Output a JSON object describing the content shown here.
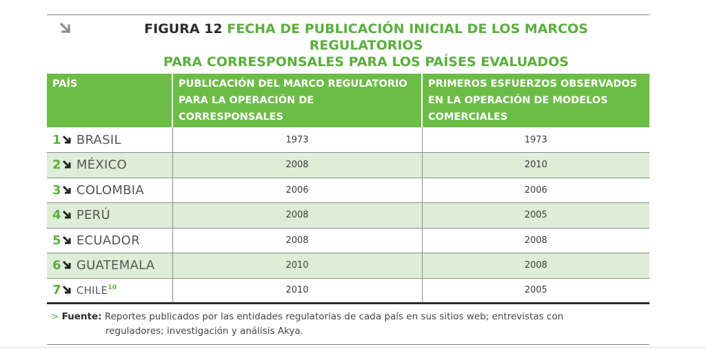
{
  "figure": {
    "label": "FIGURA 12",
    "title_line1": "FECHA DE PUBLICACIÓN INICIAL DE LOS MARCOS REGULATORIOS",
    "title_line2": "PARA CORRESPONSALES PARA LOS PAÍSES EVALUADOS"
  },
  "table": {
    "headers": [
      "PAÍS",
      "PUBLICACIÓN DEL MARCO REGULATORIO PARA LA OPERACIÓN DE CORRESPONSALES",
      "PRIMEROS ESFUERZOS OBSERVADOS EN LA OPERACIÓN DE MODELOS COMERCIALES"
    ],
    "rows": [
      {
        "num": "1",
        "country": "BRASIL",
        "publication": "1973",
        "first_efforts": "1973"
      },
      {
        "num": "2",
        "country": "MÉXICO",
        "publication": "2008",
        "first_efforts": "2010"
      },
      {
        "num": "3",
        "country": "COLOMBIA",
        "publication": "2006",
        "first_efforts": "2006"
      },
      {
        "num": "4",
        "country": "PERÚ",
        "publication": "2008",
        "first_efforts": "2005"
      },
      {
        "num": "5",
        "country": "ECUADOR",
        "publication": "2008",
        "first_efforts": "2008"
      },
      {
        "num": "6",
        "country": "GUATEMALA",
        "publication": "2010",
        "first_efforts": "2008"
      },
      {
        "num": "7",
        "country": "CHILE",
        "footnote": "10",
        "publication": "2010",
        "first_efforts": "2005"
      }
    ]
  },
  "source": {
    "prefix": ">",
    "label": "Fuente:",
    "text_line1": "Reportes publicados por las entidades regulatorias de cada país en sus sitios web; entrevistas con",
    "text_line2": "reguladores; investigación y análisis Akya."
  },
  "colors": {
    "accent_green": "#6cbd45",
    "title_green": "#5aae3e",
    "row_shade": "#deedd7"
  },
  "icons": [
    "arrow-down-right-icon"
  ]
}
